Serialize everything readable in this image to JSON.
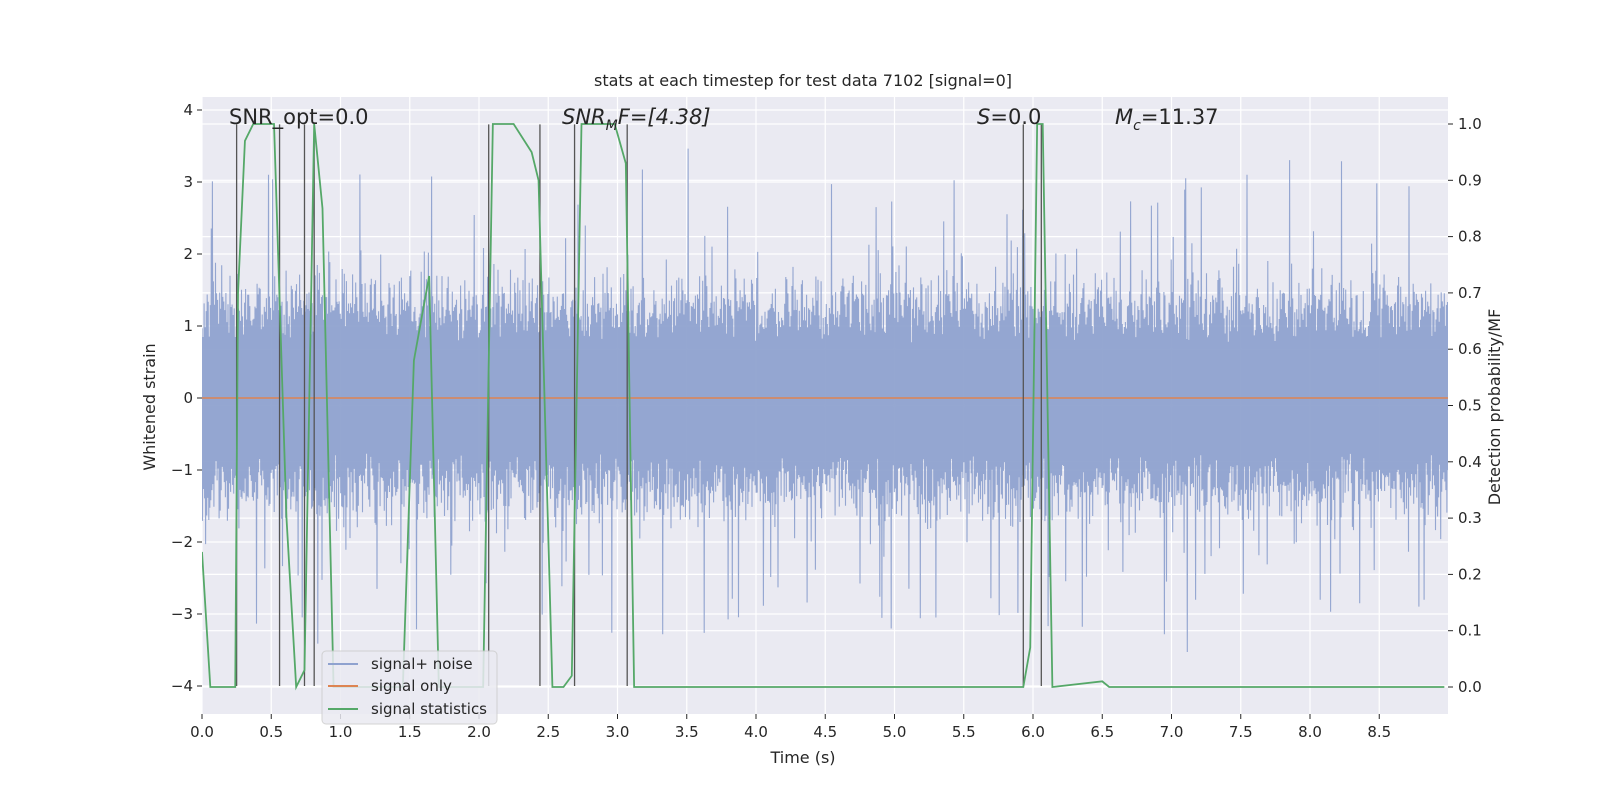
{
  "chart_data": {
    "type": "line",
    "title": "stats at each timestep for test data 7102 [signal=0]",
    "xlabel": "Time (s)",
    "ylabel": "Whitened strain",
    "y2label": "Detection probability/MF",
    "xlim": [
      0,
      9.0
    ],
    "ylim": [
      -4.4,
      4.2
    ],
    "y2lim": [
      -0.05,
      1.05
    ],
    "grid": true,
    "x_ticks": [
      "0.0",
      "0.5",
      "1.0",
      "1.5",
      "2.0",
      "2.5",
      "3.0",
      "3.5",
      "4.0",
      "4.5",
      "5.0",
      "5.5",
      "6.0",
      "6.5",
      "7.0",
      "7.5",
      "8.0",
      "8.5"
    ],
    "y_ticks": [
      "4",
      "3",
      "2",
      "1",
      "0",
      "−1",
      "−2",
      "−3",
      "−4"
    ],
    "y2_ticks": [
      "1.0",
      "0.9",
      "0.8",
      "0.7",
      "0.6",
      "0.5",
      "0.4",
      "0.3",
      "0.2",
      "0.1",
      "0.0"
    ],
    "annotations": {
      "snr_opt": "SNR_opt=0.0",
      "snr_mf_prefix": "SNR",
      "snr_mf_sub": "M",
      "snr_mf_suffix": "F=[4.38]",
      "s_prefix": "S",
      "s_suffix": "=0.0",
      "mc_prefix": "M",
      "mc_sub": "c",
      "mc_suffix": "=11.37"
    },
    "legend": {
      "placement": "lower-left",
      "entries": [
        "signal+ noise",
        "signal only",
        "signal statistics"
      ]
    },
    "colors": {
      "noise": "#8fa2cf",
      "signal_only": "#dd8452",
      "statistics": "#55a868",
      "vlines": "#555555",
      "background": "#eaeaf2",
      "grid": "#ffffff"
    },
    "noise_amplitude_envelope": {
      "typical": 1.5,
      "peak": 3.9,
      "trough": -4.0
    },
    "series": [
      {
        "name": "signal only",
        "x": [
          0.0,
          9.0
        ],
        "y": [
          0.0,
          0.0
        ]
      },
      {
        "name": "signal statistics",
        "axis": "right",
        "x": [
          0.0,
          0.06,
          0.24,
          0.26,
          0.31,
          0.37,
          0.52,
          0.61,
          0.68,
          0.74,
          0.81,
          0.87,
          0.95,
          1.0,
          1.45,
          1.53,
          1.64,
          1.71,
          2.03,
          2.1,
          2.25,
          2.38,
          2.43,
          2.53,
          2.61,
          2.67,
          2.74,
          2.98,
          3.06,
          3.12,
          5.93,
          5.98,
          6.03,
          6.07,
          6.14,
          6.5,
          6.55,
          6.6,
          8.97
        ],
        "y": [
          0.24,
          0.0,
          0.0,
          0.7,
          0.97,
          1.0,
          1.0,
          0.3,
          0.0,
          0.03,
          1.0,
          0.85,
          0.0,
          0.0,
          0.0,
          0.58,
          0.73,
          0.0,
          0.0,
          1.0,
          1.0,
          0.95,
          0.9,
          0.0,
          0.0,
          0.02,
          1.0,
          1.0,
          0.93,
          0.0,
          0.0,
          0.07,
          1.0,
          1.0,
          0.0,
          0.01,
          0.0,
          0.0,
          0.0
        ]
      }
    ],
    "vertical_markers": [
      {
        "x": 0.25,
        "y_top": 3.8,
        "y_bottom": -4.0
      },
      {
        "x": 0.56,
        "y_top": 3.8,
        "y_bottom": -4.0
      },
      {
        "x": 0.74,
        "y_top": 3.8,
        "y_bottom": -4.0
      },
      {
        "x": 0.81,
        "y_top": 3.8,
        "y_bottom": -4.0
      },
      {
        "x": 2.07,
        "y_top": 3.8,
        "y_bottom": -4.0
      },
      {
        "x": 2.44,
        "y_top": 3.8,
        "y_bottom": -4.0
      },
      {
        "x": 2.69,
        "y_top": 3.8,
        "y_bottom": -4.0
      },
      {
        "x": 3.07,
        "y_top": 3.8,
        "y_bottom": -4.0
      },
      {
        "x": 5.93,
        "y_top": 3.8,
        "y_bottom": -4.0
      },
      {
        "x": 6.06,
        "y_top": 3.8,
        "y_bottom": -4.0
      }
    ]
  }
}
